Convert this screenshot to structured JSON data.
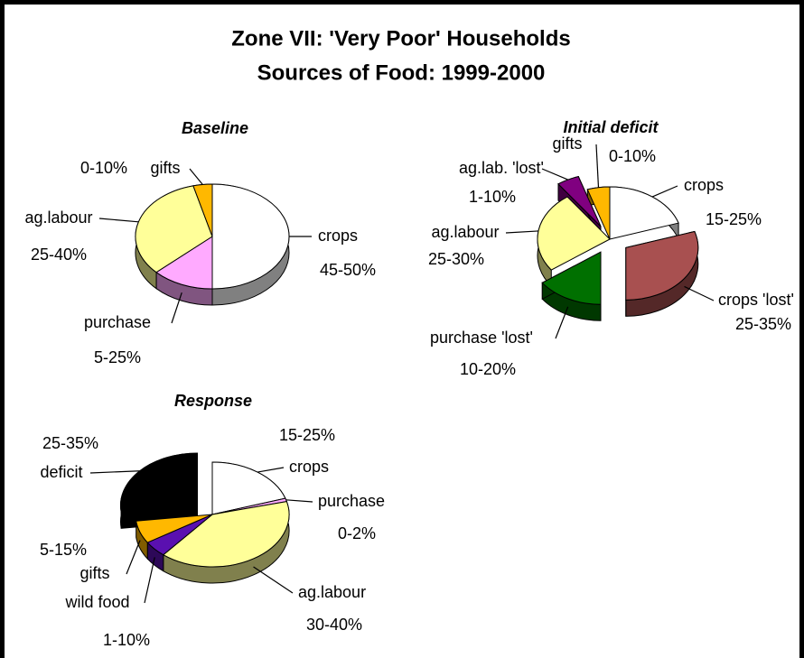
{
  "title": "Zone VII: 'Very Poor' Households",
  "subtitle": "Sources of Food:  1999-2000",
  "chart_data": [
    {
      "type": "pie",
      "title": "Baseline",
      "categories": [
        "crops",
        "purchase",
        "ag.labour",
        "gifts"
      ],
      "ranges": [
        "45-50%",
        "5-25%",
        "25-40%",
        "0-10%"
      ],
      "values": [
        50,
        13,
        33,
        4
      ],
      "colors": [
        "#ffffff",
        "#ffaaff",
        "#ffff99",
        "#ffb800"
      ],
      "explode": [
        false,
        false,
        false,
        false
      ]
    },
    {
      "type": "pie",
      "title": "Initial deficit",
      "categories": [
        "crops",
        "crops 'lost'",
        "purchase 'lost'",
        "ag.labour",
        "ag.lab. 'lost'",
        "gifts"
      ],
      "ranges": [
        "15-25%",
        "25-35%",
        "10-20%",
        "25-30%",
        "1-10%",
        "0-10%"
      ],
      "values": [
        20,
        30,
        15,
        25,
        5,
        5
      ],
      "colors": [
        "#ffffff",
        "#a85050",
        "#007000",
        "#ffff99",
        "#800080",
        "#ffb800"
      ],
      "explode": [
        false,
        true,
        true,
        false,
        true,
        false
      ]
    },
    {
      "type": "pie",
      "title": "Response",
      "categories": [
        "crops",
        "purchase",
        "ag.labour",
        "wild food",
        "gifts",
        "deficit"
      ],
      "ranges": [
        "15-25%",
        "0-2%",
        "30-40%",
        "1-10%",
        "5-15%",
        "25-35%"
      ],
      "values": [
        20,
        1,
        40,
        5,
        7,
        27
      ],
      "colors": [
        "#ffffff",
        "#ffaaff",
        "#ffff99",
        "#5a10b0",
        "#ffb800",
        "#000000"
      ],
      "explode": [
        false,
        false,
        false,
        false,
        false,
        true
      ]
    }
  ]
}
